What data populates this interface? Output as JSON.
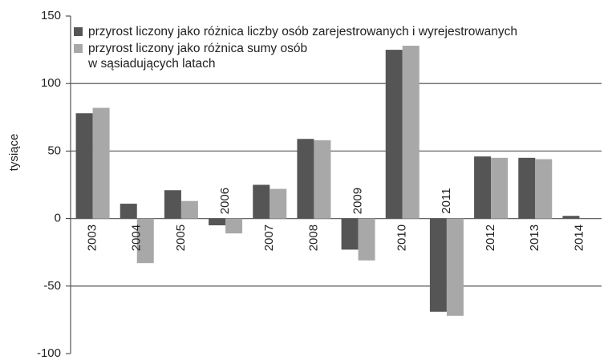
{
  "chart_data": {
    "type": "bar",
    "ylabel": "tysiące",
    "categories": [
      "2003",
      "2004",
      "2005",
      "2006",
      "2007",
      "2008",
      "2009",
      "2010",
      "2011",
      "2012",
      "2013",
      "2014"
    ],
    "series": [
      {
        "name": "przyrost liczony jako różnica liczby osób zarejestrowanych i wyrejestrowanych",
        "color": "#555555",
        "values": [
          78,
          11,
          21,
          -5,
          25,
          59,
          -23,
          125,
          -69,
          46,
          45,
          2
        ]
      },
      {
        "name": "przyrost liczony jako różnica sumy osób\nw sąsiadujących latach",
        "color": "#a8a8a8",
        "values": [
          82,
          -33,
          13,
          -11,
          22,
          58,
          -31,
          128,
          -72,
          45,
          44,
          0
        ]
      }
    ],
    "ylim": [
      -100,
      150
    ],
    "yticks": [
      -100,
      -50,
      0,
      50,
      100,
      150
    ],
    "grid": true
  }
}
